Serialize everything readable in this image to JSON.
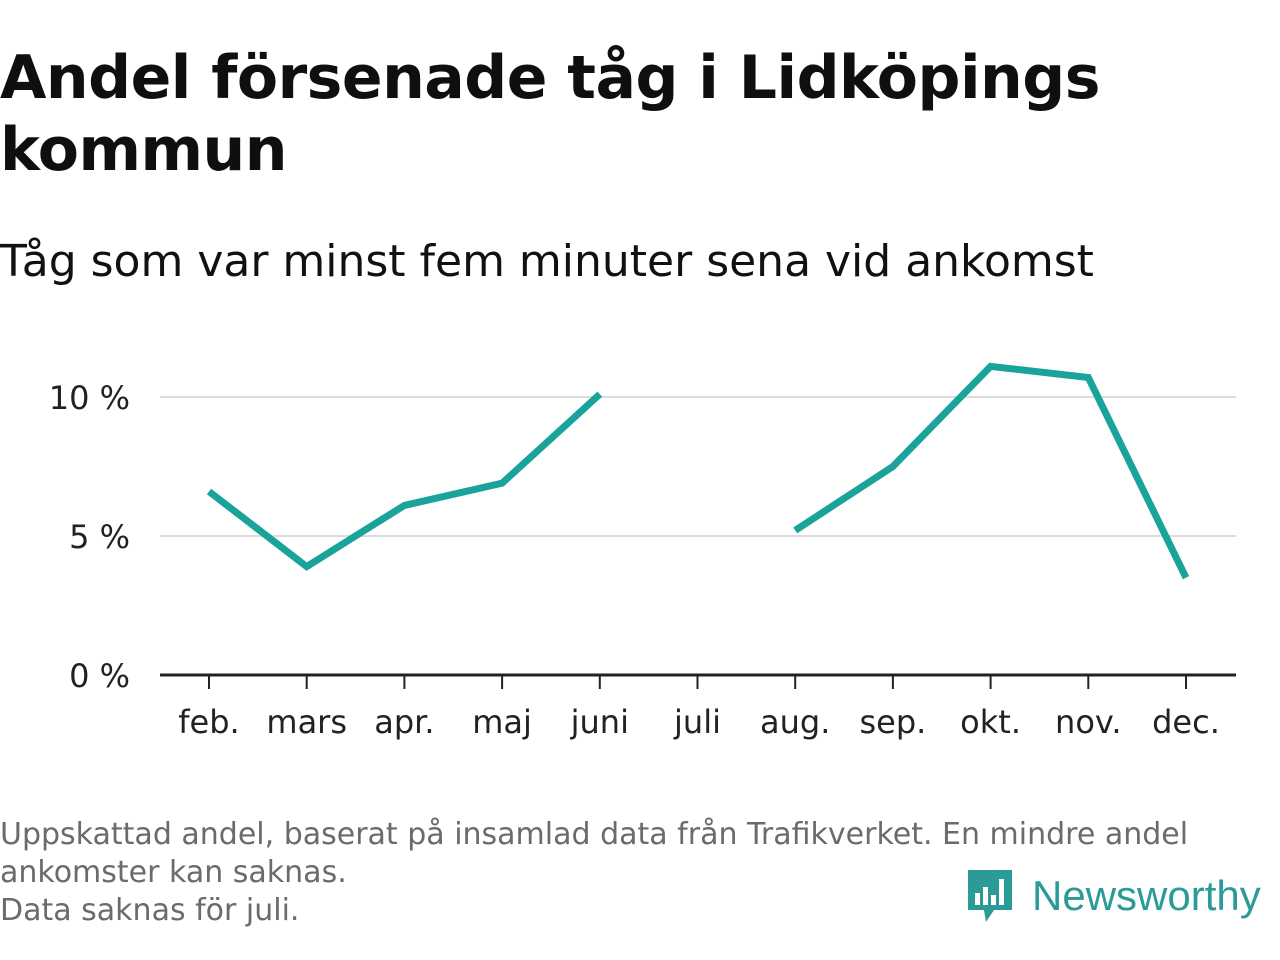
{
  "header": {
    "title": "Andel försenade tåg i Lidköpings kommun",
    "subtitle": "Tåg som var minst fem minuter sena vid ankomst"
  },
  "chart_data": {
    "type": "line",
    "categories": [
      "feb.",
      "mars",
      "apr.",
      "maj",
      "juni",
      "juli",
      "aug.",
      "sep.",
      "okt.",
      "nov.",
      "dec."
    ],
    "series": [
      {
        "values": [
          6.6,
          3.9,
          6.1,
          6.9,
          10.1,
          null,
          5.2,
          7.5,
          11.1,
          10.7,
          3.5
        ],
        "color": "#1aa39a"
      }
    ],
    "yticks": [
      0,
      5,
      10
    ],
    "ytick_labels": [
      "0 %",
      "5 %",
      "10 %"
    ],
    "ylim": [
      0,
      12
    ],
    "grid": true
  },
  "footer": {
    "notes": [
      "Uppskattad andel, baserat på insamlad data från Trafikverket. En mindre andel ankomster kan saknas.",
      "Data saknas för juli."
    ],
    "brand": "Newsworthy",
    "brand_color": "#2a9b96"
  }
}
